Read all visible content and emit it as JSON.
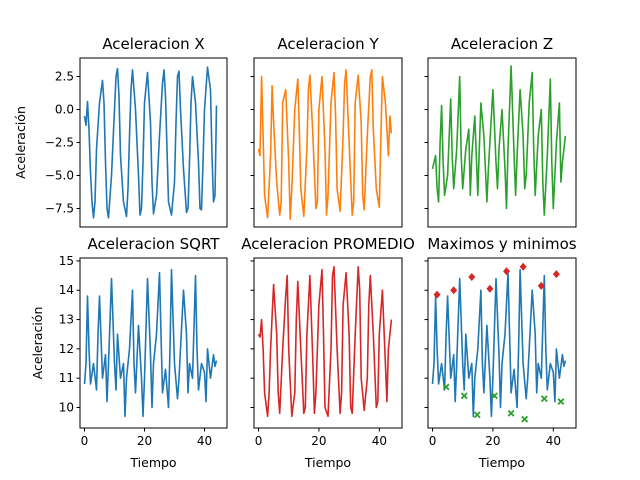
{
  "chart_data": [
    {
      "type": "line",
      "title": "Aceleracion X",
      "ylabel": "Aceleración",
      "xlabel": "",
      "xlim": [
        -1.5,
        47.5
      ],
      "ylim": [
        -8.9,
        3.9
      ],
      "yticks": [
        2.5,
        0.0,
        -2.5,
        -5.0,
        -7.5
      ],
      "ytick_labels": [
        "2.5",
        "0.0",
        "−2.5",
        "−5.0",
        "−7.5"
      ],
      "color": "#1f77b4",
      "x": [
        0,
        0.5,
        1,
        1.5,
        2,
        2.5,
        3,
        3.5,
        4,
        5,
        6,
        6.5,
        7,
        7.5,
        8,
        9,
        10,
        10.5,
        11,
        11.5,
        12,
        13,
        14,
        14.5,
        15,
        15.5,
        16,
        17,
        18,
        18.5,
        19,
        19.5,
        20,
        21,
        22,
        22.5,
        23,
        24,
        25,
        26,
        26.5,
        27,
        27.5,
        28,
        29,
        30,
        30.5,
        31,
        31.5,
        32,
        33,
        34,
        34.5,
        35,
        35.5,
        36,
        37,
        38,
        38.5,
        39,
        39.5,
        40,
        41,
        42,
        42.5,
        43,
        43.5,
        44
      ],
      "y": [
        -0.5,
        -1.2,
        0.6,
        -1.5,
        -4.8,
        -7.0,
        -8.2,
        -7.0,
        -3.0,
        0.5,
        2.2,
        0.5,
        -4.0,
        -7.5,
        -8.2,
        -5.0,
        0.0,
        2.5,
        3.1,
        1.0,
        -3.5,
        -7.0,
        -8.1,
        -6.0,
        -2.0,
        1.5,
        3.0,
        0.0,
        -5.0,
        -8.0,
        -7.5,
        -4.0,
        0.5,
        2.8,
        -1.0,
        -5.5,
        -7.9,
        -6.5,
        -2.0,
        2.0,
        3.0,
        1.0,
        -3.0,
        -7.0,
        -8.0,
        -5.5,
        -1.0,
        2.5,
        2.9,
        0.0,
        -4.5,
        -7.8,
        -7.5,
        -4.0,
        0.5,
        2.5,
        0.5,
        -4.0,
        -7.5,
        -7.6,
        -4.0,
        0.0,
        3.2,
        1.5,
        -3.5,
        -7.0,
        -6.5,
        0.3
      ]
    },
    {
      "type": "line",
      "title": "Aceleracion Y",
      "xlabel": "",
      "ylabel": "",
      "xlim": [
        -1.5,
        47.5
      ],
      "ylim": [
        -8.9,
        3.9
      ],
      "color": "#ff7f0e",
      "x": [
        0,
        0.5,
        1,
        1.5,
        2,
        3,
        4,
        4.5,
        5,
        6,
        7,
        7.5,
        8,
        9,
        10,
        10.5,
        11,
        12,
        13,
        13.5,
        14,
        15,
        16,
        16.5,
        17,
        18,
        19,
        19.5,
        20,
        21,
        22,
        22.5,
        23,
        24,
        25,
        25.5,
        26,
        27,
        28,
        28.5,
        29,
        30,
        31,
        31.5,
        32,
        33,
        34,
        34.5,
        35,
        36,
        37,
        37.5,
        38,
        39,
        40,
        40.5,
        41,
        42,
        43,
        43.5,
        44
      ],
      "y": [
        -3.0,
        -3.5,
        2.5,
        -2.0,
        -6.5,
        -8.2,
        -3.5,
        1.8,
        -1.0,
        -5.5,
        -8.0,
        -7.0,
        0.5,
        1.5,
        -4.0,
        -8.3,
        -6.0,
        0.0,
        2.3,
        -1.5,
        -6.0,
        -8.1,
        -3.0,
        1.5,
        2.6,
        -2.0,
        -7.5,
        -7.0,
        0.0,
        2.5,
        -3.0,
        -8.0,
        -6.5,
        0.5,
        2.8,
        -0.5,
        -6.0,
        -7.7,
        -2.0,
        2.0,
        3.0,
        -2.5,
        -8.0,
        -7.0,
        0.5,
        2.6,
        -1.0,
        -6.5,
        -7.6,
        -2.0,
        2.5,
        3.0,
        -1.5,
        -6.0,
        -7.4,
        -2.0,
        2.5,
        0.5,
        -3.5,
        -0.5,
        -1.8
      ]
    },
    {
      "type": "line",
      "title": "Aceleracion Z",
      "xlabel": "",
      "ylabel": "",
      "xlim": [
        -1.5,
        47.5
      ],
      "ylim": [
        -8.9,
        3.9
      ],
      "color": "#2ca02c",
      "x": [
        0,
        0.5,
        1,
        1.5,
        2,
        2.5,
        3,
        3.5,
        4,
        5,
        6,
        6.5,
        7,
        8,
        9,
        9.5,
        10,
        11,
        12,
        12.5,
        13,
        14,
        15,
        15.5,
        16,
        17,
        18,
        18.5,
        19,
        20,
        21,
        21.5,
        22,
        23,
        24,
        24.5,
        25,
        26,
        27,
        27.5,
        28,
        29,
        30,
        30.5,
        31,
        32,
        33,
        33.5,
        34,
        35,
        36,
        36.5,
        37,
        38,
        39,
        39.5,
        40,
        41,
        42,
        42.5,
        43,
        44
      ],
      "y": [
        -4.5,
        -4.0,
        -3.5,
        -6.0,
        -7.0,
        -2.5,
        0.3,
        -4.0,
        -6.5,
        -5.0,
        0.8,
        -3.5,
        -6.0,
        -3.0,
        2.5,
        -3.5,
        -6.0,
        -3.0,
        -1.5,
        -6.5,
        -3.5,
        -0.5,
        -6.5,
        -3.0,
        0.5,
        -2.0,
        -7.0,
        -4.5,
        -2.5,
        1.5,
        -4.0,
        -6.0,
        -3.0,
        0.0,
        -4.5,
        -7.5,
        -3.0,
        3.3,
        -3.5,
        -6.5,
        -3.5,
        1.5,
        -2.0,
        -6.0,
        -5.0,
        0.5,
        2.8,
        -3.0,
        -6.5,
        -2.0,
        0.0,
        -5.5,
        -8.0,
        -3.5,
        2.3,
        -4.0,
        -7.5,
        -2.5,
        0.5,
        -5.5,
        -4.0,
        -2.0
      ]
    },
    {
      "type": "line",
      "title": "Aceleracion SQRT",
      "ylabel": "Aceleración",
      "xlabel": "Tiempo",
      "xlim": [
        -1.5,
        47.5
      ],
      "ylim": [
        9.3,
        15.1
      ],
      "yticks": [
        10,
        11,
        12,
        13,
        14,
        15
      ],
      "xticks": [
        0,
        20,
        40
      ],
      "color": "#1f77b4",
      "x": [
        0,
        0.5,
        1,
        1.5,
        2,
        3,
        4,
        4.5,
        5,
        6,
        7,
        7.5,
        8,
        9,
        10,
        10.5,
        11,
        12,
        13,
        13.5,
        14,
        15,
        16,
        16.5,
        17,
        18,
        19,
        19.5,
        20,
        21,
        22,
        22.5,
        23,
        24,
        25,
        25.5,
        26,
        27,
        28,
        28.5,
        29,
        30,
        31,
        31.5,
        32,
        33,
        34,
        34.5,
        35,
        36,
        37,
        37.5,
        38,
        39,
        40,
        40.5,
        41,
        42,
        43,
        43.5,
        44
      ],
      "y": [
        10.8,
        11.5,
        13.8,
        12.0,
        10.8,
        11.5,
        10.6,
        12.5,
        13.8,
        11.0,
        11.8,
        10.2,
        11.5,
        14.4,
        11.5,
        10.6,
        12.5,
        11.0,
        11.5,
        9.7,
        11.0,
        12.0,
        14.0,
        11.5,
        10.5,
        12.8,
        11.0,
        9.7,
        11.0,
        14.4,
        11.8,
        10.0,
        11.5,
        12.5,
        14.6,
        12.5,
        10.5,
        11.3,
        10.0,
        12.0,
        14.7,
        11.5,
        10.3,
        11.0,
        12.0,
        14.0,
        12.5,
        10.5,
        11.5,
        11.0,
        14.5,
        12.0,
        10.6,
        11.5,
        11.2,
        10.2,
        12.0,
        11.0,
        11.8,
        11.4,
        11.6
      ]
    },
    {
      "type": "line",
      "title": "Aceleracion PROMEDIO",
      "xlabel": "Tiempo",
      "ylabel": "",
      "xlim": [
        -1.5,
        47.5
      ],
      "ylim": [
        9.3,
        15.1
      ],
      "xticks": [
        0,
        20,
        40
      ],
      "color": "#d62728",
      "x": [
        0,
        0.5,
        1,
        1.5,
        2,
        3,
        3.5,
        4,
        5,
        6,
        6.5,
        7,
        8,
        9,
        9.5,
        10,
        11,
        12,
        12.5,
        13,
        14,
        15,
        15.5,
        16,
        17,
        18,
        18.5,
        19,
        20,
        21,
        21.5,
        22,
        23,
        24,
        24.5,
        25,
        26,
        27,
        27.5,
        28,
        29,
        30,
        30.5,
        31,
        32,
        33,
        33.5,
        34,
        35,
        36,
        36.5,
        37,
        38,
        39,
        39.5,
        40,
        41,
        42,
        42.5,
        43,
        44
      ],
      "y": [
        12.5,
        12.4,
        13.0,
        12.0,
        10.5,
        9.7,
        10.5,
        12.0,
        14.2,
        12.5,
        10.5,
        9.8,
        12.0,
        13.8,
        14.5,
        12.0,
        9.7,
        10.5,
        13.0,
        14.3,
        12.0,
        9.8,
        10.0,
        12.5,
        14.5,
        11.5,
        9.8,
        10.5,
        13.5,
        14.7,
        12.5,
        10.0,
        9.7,
        12.0,
        14.5,
        14.8,
        12.0,
        9.8,
        10.5,
        13.5,
        14.6,
        12.5,
        10.0,
        9.8,
        12.5,
        14.8,
        14.0,
        11.0,
        9.9,
        11.0,
        13.5,
        14.5,
        12.5,
        10.0,
        10.2,
        12.5,
        14.0,
        11.5,
        10.2,
        12.0,
        13.0
      ]
    },
    {
      "type": "line",
      "title": "Maximos y minimos",
      "xlabel": "Tiempo",
      "ylabel": "",
      "xlim": [
        -1.5,
        47.5
      ],
      "ylim": [
        9.3,
        15.1
      ],
      "xticks": [
        0,
        20,
        40
      ],
      "color": "#1f77b4",
      "x": [
        0,
        0.5,
        1,
        1.5,
        2,
        3,
        4,
        4.5,
        5,
        6,
        7,
        7.5,
        8,
        9,
        10,
        10.5,
        11,
        12,
        13,
        13.5,
        14,
        15,
        16,
        16.5,
        17,
        18,
        19,
        19.5,
        20,
        21,
        22,
        22.5,
        23,
        24,
        25,
        25.5,
        26,
        27,
        28,
        28.5,
        29,
        30,
        31,
        31.5,
        32,
        33,
        34,
        34.5,
        35,
        36,
        37,
        37.5,
        38,
        39,
        40,
        40.5,
        41,
        42,
        43,
        43.5,
        44
      ],
      "y": [
        10.8,
        11.5,
        13.8,
        12.0,
        10.8,
        11.5,
        10.6,
        12.5,
        13.8,
        11.0,
        11.8,
        10.2,
        11.5,
        14.4,
        11.5,
        10.6,
        12.5,
        11.0,
        11.5,
        9.7,
        11.0,
        12.0,
        14.0,
        11.5,
        10.5,
        12.8,
        11.0,
        9.7,
        11.0,
        14.4,
        11.8,
        10.0,
        11.5,
        12.5,
        14.6,
        12.5,
        10.5,
        11.3,
        10.0,
        12.0,
        14.7,
        11.5,
        10.3,
        11.0,
        12.0,
        14.0,
        12.5,
        10.5,
        11.5,
        11.0,
        14.5,
        12.0,
        10.6,
        11.5,
        11.2,
        10.2,
        12.0,
        11.0,
        11.8,
        11.4,
        11.6
      ],
      "maxima": {
        "color": "#d62728",
        "x": [
          1.5,
          7,
          13,
          19,
          24.5,
          30,
          36,
          41
        ],
        "y": [
          13.85,
          14.0,
          14.45,
          14.05,
          14.65,
          14.8,
          14.15,
          14.55
        ]
      },
      "minima": {
        "color": "#2ca02c",
        "x": [
          4.5,
          10.5,
          14.8,
          20.5,
          26,
          30.5,
          37,
          42.5
        ],
        "y": [
          10.7,
          10.4,
          9.75,
          10.4,
          9.8,
          9.6,
          10.3,
          10.2
        ]
      }
    }
  ]
}
